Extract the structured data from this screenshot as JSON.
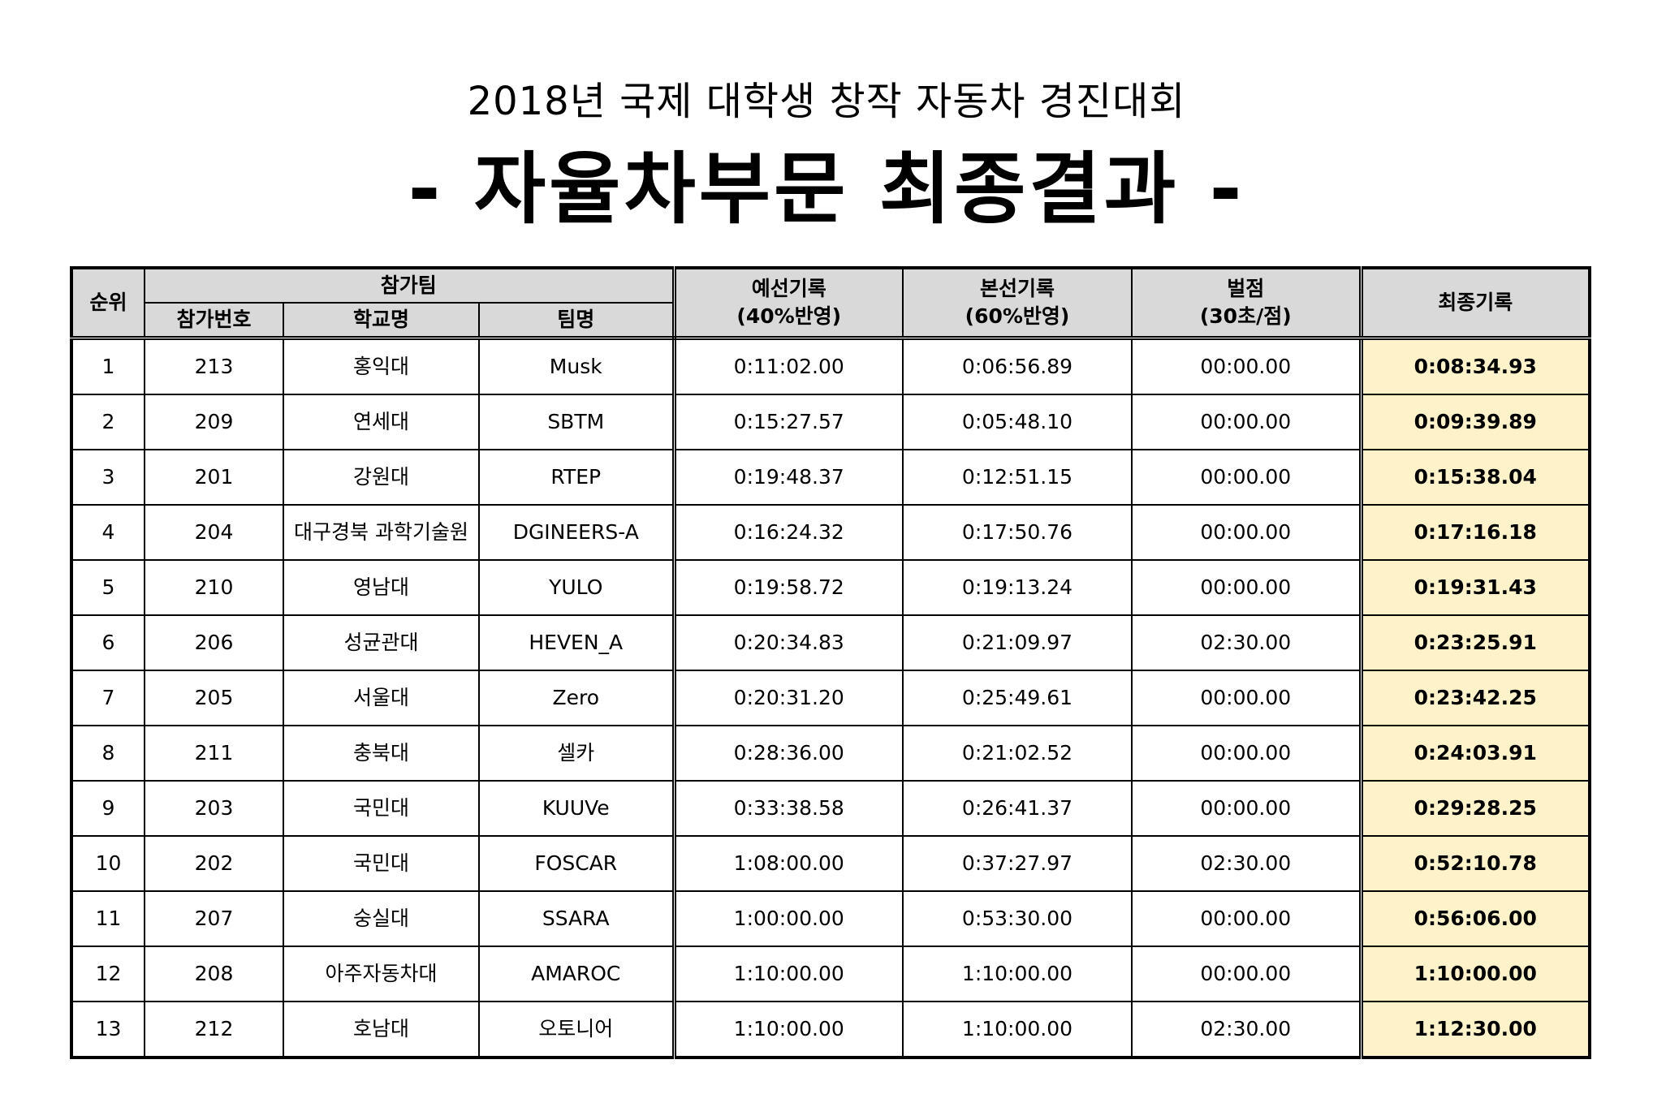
{
  "header": {
    "subtitle": "2018년 국제 대학생 창작 자동차 경진대회",
    "title": "- 자율차부문 최종결과 -"
  },
  "table": {
    "columns": {
      "rank": "순위",
      "team_group": "참가팀",
      "entry_no": "참가번호",
      "school": "학교명",
      "team": "팀명",
      "prelim_line1": "예선기록",
      "prelim_line2": "(40%반영)",
      "main_line1": "본선기록",
      "main_line2": "(60%반영)",
      "penalty_line1": "벌점",
      "penalty_line2": "(30초/점)",
      "final": "최종기록"
    },
    "rows": [
      {
        "rank": "1",
        "entry_no": "213",
        "school": "홍익대",
        "team": "Musk",
        "prelim": "0:11:02.00",
        "main": "0:06:56.89",
        "penalty": "00:00.00",
        "final": "0:08:34.93"
      },
      {
        "rank": "2",
        "entry_no": "209",
        "school": "연세대",
        "team": "SBTM",
        "prelim": "0:15:27.57",
        "main": "0:05:48.10",
        "penalty": "00:00.00",
        "final": "0:09:39.89"
      },
      {
        "rank": "3",
        "entry_no": "201",
        "school": "강원대",
        "team": "RTEP",
        "prelim": "0:19:48.37",
        "main": "0:12:51.15",
        "penalty": "00:00.00",
        "final": "0:15:38.04"
      },
      {
        "rank": "4",
        "entry_no": "204",
        "school": "대구경북 과학기술원",
        "team": "DGINEERS-A",
        "prelim": "0:16:24.32",
        "main": "0:17:50.76",
        "penalty": "00:00.00",
        "final": "0:17:16.18"
      },
      {
        "rank": "5",
        "entry_no": "210",
        "school": "영남대",
        "team": "YULO",
        "prelim": "0:19:58.72",
        "main": "0:19:13.24",
        "penalty": "00:00.00",
        "final": "0:19:31.43"
      },
      {
        "rank": "6",
        "entry_no": "206",
        "school": "성균관대",
        "team": "HEVEN_A",
        "prelim": "0:20:34.83",
        "main": "0:21:09.97",
        "penalty": "02:30.00",
        "final": "0:23:25.91"
      },
      {
        "rank": "7",
        "entry_no": "205",
        "school": "서울대",
        "team": "Zero",
        "prelim": "0:20:31.20",
        "main": "0:25:49.61",
        "penalty": "00:00.00",
        "final": "0:23:42.25"
      },
      {
        "rank": "8",
        "entry_no": "211",
        "school": "충북대",
        "team": "셀카",
        "prelim": "0:28:36.00",
        "main": "0:21:02.52",
        "penalty": "00:00.00",
        "final": "0:24:03.91"
      },
      {
        "rank": "9",
        "entry_no": "203",
        "school": "국민대",
        "team": "KUUVe",
        "prelim": "0:33:38.58",
        "main": "0:26:41.37",
        "penalty": "00:00.00",
        "final": "0:29:28.25"
      },
      {
        "rank": "10",
        "entry_no": "202",
        "school": "국민대",
        "team": "FOSCAR",
        "prelim": "1:08:00.00",
        "main": "0:37:27.97",
        "penalty": "02:30.00",
        "final": "0:52:10.78"
      },
      {
        "rank": "11",
        "entry_no": "207",
        "school": "숭실대",
        "team": "SSARA",
        "prelim": "1:00:00.00",
        "main": "0:53:30.00",
        "penalty": "00:00.00",
        "final": "0:56:06.00"
      },
      {
        "rank": "12",
        "entry_no": "208",
        "school": "아주자동차대",
        "team": "AMAROC",
        "prelim": "1:10:00.00",
        "main": "1:10:00.00",
        "penalty": "00:00.00",
        "final": "1:10:00.00"
      },
      {
        "rank": "13",
        "entry_no": "212",
        "school": "호남대",
        "team": "오토니어",
        "prelim": "1:10:00.00",
        "main": "1:10:00.00",
        "penalty": "02:30.00",
        "final": "1:12:30.00"
      }
    ]
  },
  "colors": {
    "header_bg": "#d9d9d9",
    "final_bg": "#fef2cb"
  }
}
